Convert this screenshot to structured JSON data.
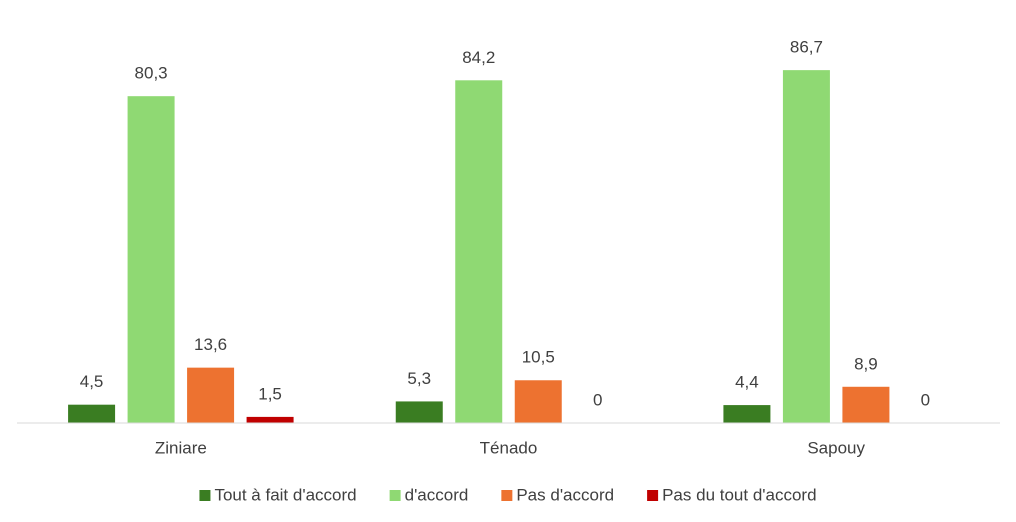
{
  "chart_data": {
    "type": "bar",
    "categories": [
      "Ziniare",
      "Ténado",
      "Sapouy"
    ],
    "series": [
      {
        "name": "Tout à fait d'accord",
        "color": "#3a7d22",
        "values": [
          4.5,
          5.3,
          4.4
        ],
        "value_labels": [
          "4,5",
          "5,3",
          "4,4"
        ]
      },
      {
        "name": "d'accord",
        "color": "#8fd973",
        "values": [
          80.3,
          84.2,
          86.7
        ],
        "value_labels": [
          "80,3",
          "84,2",
          "86,7"
        ]
      },
      {
        "name": "Pas d'accord",
        "color": "#ed7230",
        "values": [
          13.6,
          10.5,
          8.9
        ],
        "value_labels": [
          "13,6",
          "10,5",
          "8,9"
        ]
      },
      {
        "name": "Pas du tout d'accord",
        "color": "#c00000",
        "values": [
          1.5,
          0,
          0
        ],
        "value_labels": [
          "1,5",
          "0",
          "0"
        ]
      }
    ],
    "ylim": [
      0,
      100
    ],
    "legend": "bottom"
  }
}
